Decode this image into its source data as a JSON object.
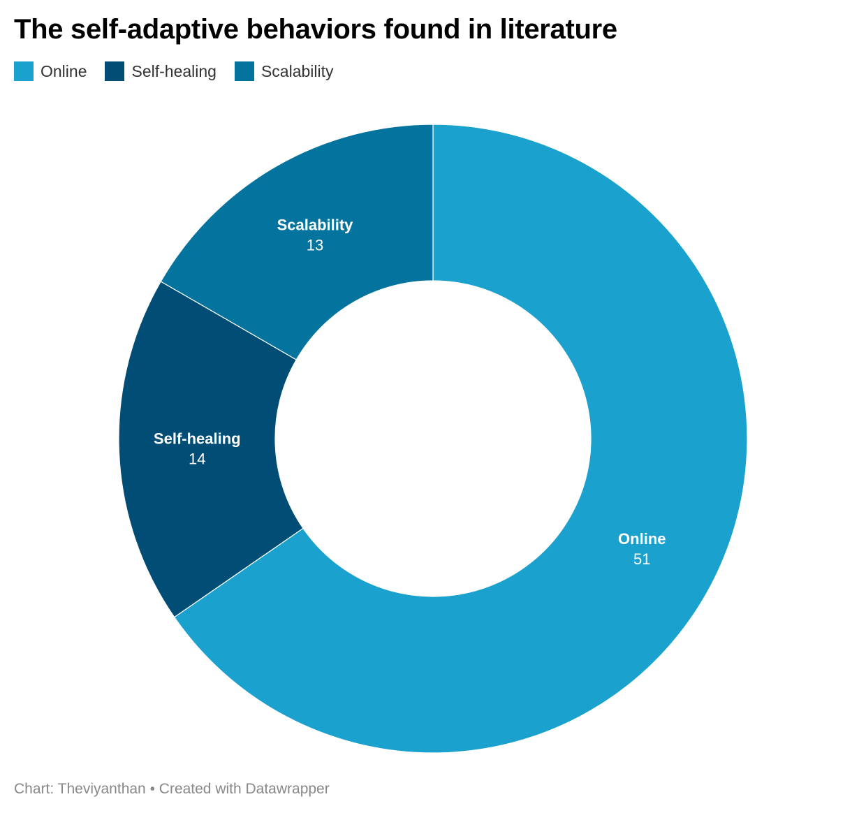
{
  "title": "The self-adaptive behaviors found in literature",
  "footer": {
    "credit_prefix": "Chart: ",
    "credit_name": "Theviyanthan",
    "separator": " • ",
    "created_with": "Created with Datawrapper"
  },
  "chart_data": {
    "type": "pie",
    "donut": true,
    "title": "The self-adaptive behaviors found in literature",
    "legend_position": "top-left",
    "series": [
      {
        "name": "Online",
        "value": 51,
        "color": "#1aa1cd"
      },
      {
        "name": "Self-healing",
        "value": 14,
        "color": "#014d76"
      },
      {
        "name": "Scalability",
        "value": 13,
        "color": "#04739d"
      }
    ]
  }
}
